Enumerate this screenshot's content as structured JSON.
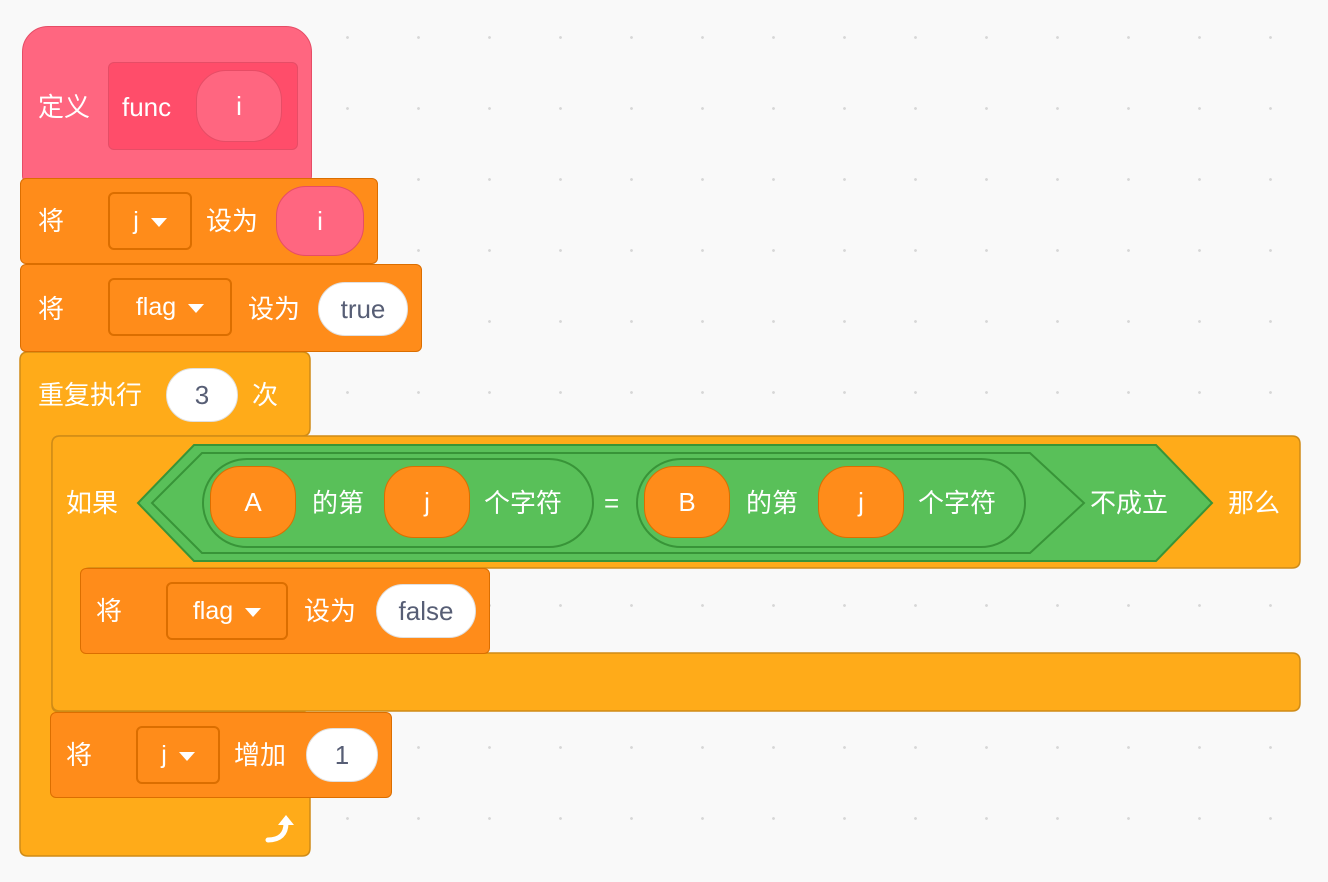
{
  "define_block": {
    "keyword": "定义",
    "func_name": "func",
    "param": "i"
  },
  "set_j": {
    "keyword": "将",
    "variable": "j",
    "set_to": "设为",
    "value": "i"
  },
  "set_flag_true": {
    "keyword": "将",
    "variable": "flag",
    "set_to": "设为",
    "value": "true"
  },
  "repeat_block": {
    "label": "重复执行",
    "count": "3",
    "suffix": "次"
  },
  "if_block": {
    "keyword": "如果",
    "then": "那么",
    "condition": {
      "left": {
        "string": "A",
        "of": "的第",
        "index": "j",
        "char": "个字符"
      },
      "operator": "=",
      "right": {
        "string": "B",
        "of": "的第",
        "index": "j",
        "char": "个字符"
      },
      "negation": "不成立"
    }
  },
  "set_flag_false": {
    "keyword": "将",
    "variable": "flag",
    "set_to": "设为",
    "value": "false"
  },
  "change_j": {
    "keyword": "将",
    "variable": "j",
    "change_by": "增加",
    "value": "1"
  },
  "icons": {
    "loop_arrow": "loop-arrow-icon",
    "dropdown": "dropdown-triangle-icon"
  },
  "colors": {
    "events_pink": "#ff6680",
    "variables_orange": "#ff8c1a",
    "control_yellow": "#ffab19",
    "operators_green": "#59c059",
    "workspace": "#f9f9f9"
  }
}
